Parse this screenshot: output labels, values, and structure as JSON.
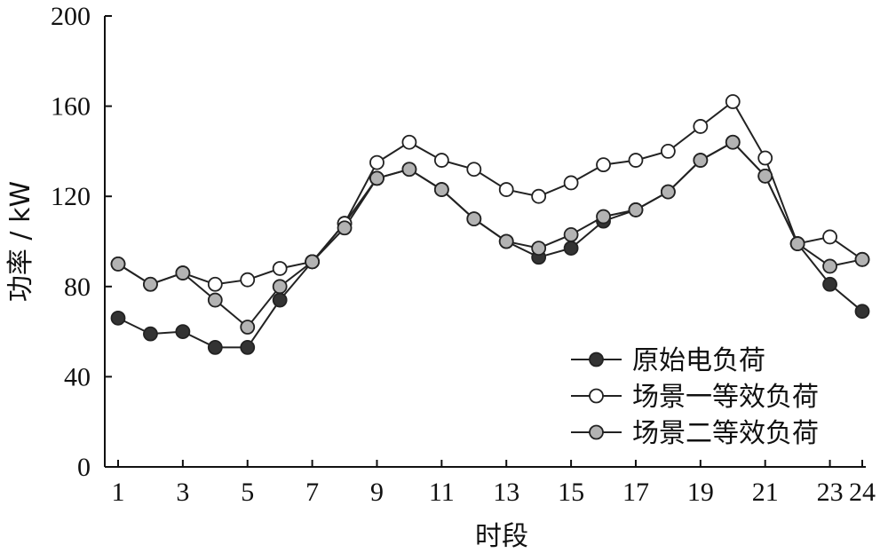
{
  "chart_data": {
    "type": "line",
    "xlabel": "时段",
    "ylabel": "功率 / kW",
    "xlim": [
      1,
      24
    ],
    "ylim": [
      0,
      200
    ],
    "x_ticks": [
      1,
      3,
      5,
      7,
      9,
      11,
      13,
      15,
      17,
      19,
      21,
      23,
      24
    ],
    "y_ticks": [
      0,
      40,
      80,
      120,
      160,
      200
    ],
    "x_tick_labels": [
      "1",
      "3",
      "5",
      "7",
      "9",
      "11",
      "13",
      "15",
      "17",
      "19",
      "21",
      "23",
      "24"
    ],
    "y_tick_labels": [
      "0",
      "40",
      "80",
      "120",
      "160",
      "200"
    ],
    "grid": false,
    "legend_position": "bottom-right",
    "x": [
      1,
      2,
      3,
      4,
      5,
      6,
      7,
      8,
      9,
      10,
      11,
      12,
      13,
      14,
      15,
      16,
      17,
      18,
      19,
      20,
      21,
      22,
      23,
      24
    ],
    "series": [
      {
        "name": "原始电负荷",
        "marker_fill": "#333333",
        "values": [
          66,
          59,
          60,
          53,
          53,
          74,
          91,
          108,
          128,
          132,
          123,
          110,
          100,
          93,
          97,
          109,
          114,
          122,
          136,
          144,
          129,
          99,
          81,
          69
        ]
      },
      {
        "name": "场景一等效负荷",
        "marker_fill": "#ffffff",
        "values": [
          90,
          81,
          86,
          81,
          83,
          88,
          91,
          108,
          135,
          144,
          136,
          132,
          123,
          120,
          126,
          134,
          136,
          140,
          151,
          162,
          137,
          99,
          102,
          92
        ]
      },
      {
        "name": "场景二等效负荷",
        "marker_fill": "#b3b3b3",
        "values": [
          90,
          81,
          86,
          74,
          62,
          80,
          91,
          106,
          128,
          132,
          123,
          110,
          100,
          97,
          103,
          111,
          114,
          122,
          136,
          144,
          129,
          99,
          89,
          92
        ]
      }
    ]
  }
}
